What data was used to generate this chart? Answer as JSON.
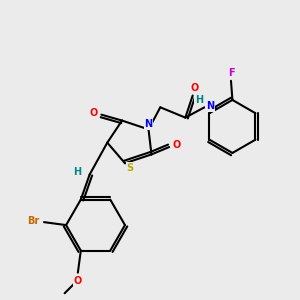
{
  "bg_color": "#ebebeb",
  "atom_colors": {
    "C": "#000000",
    "N": "#0000ff",
    "O": "#ff0000",
    "S": "#bbaa00",
    "Br": "#cc6600",
    "F": "#cc00cc",
    "H": "#008888"
  },
  "bond_color": "#000000"
}
